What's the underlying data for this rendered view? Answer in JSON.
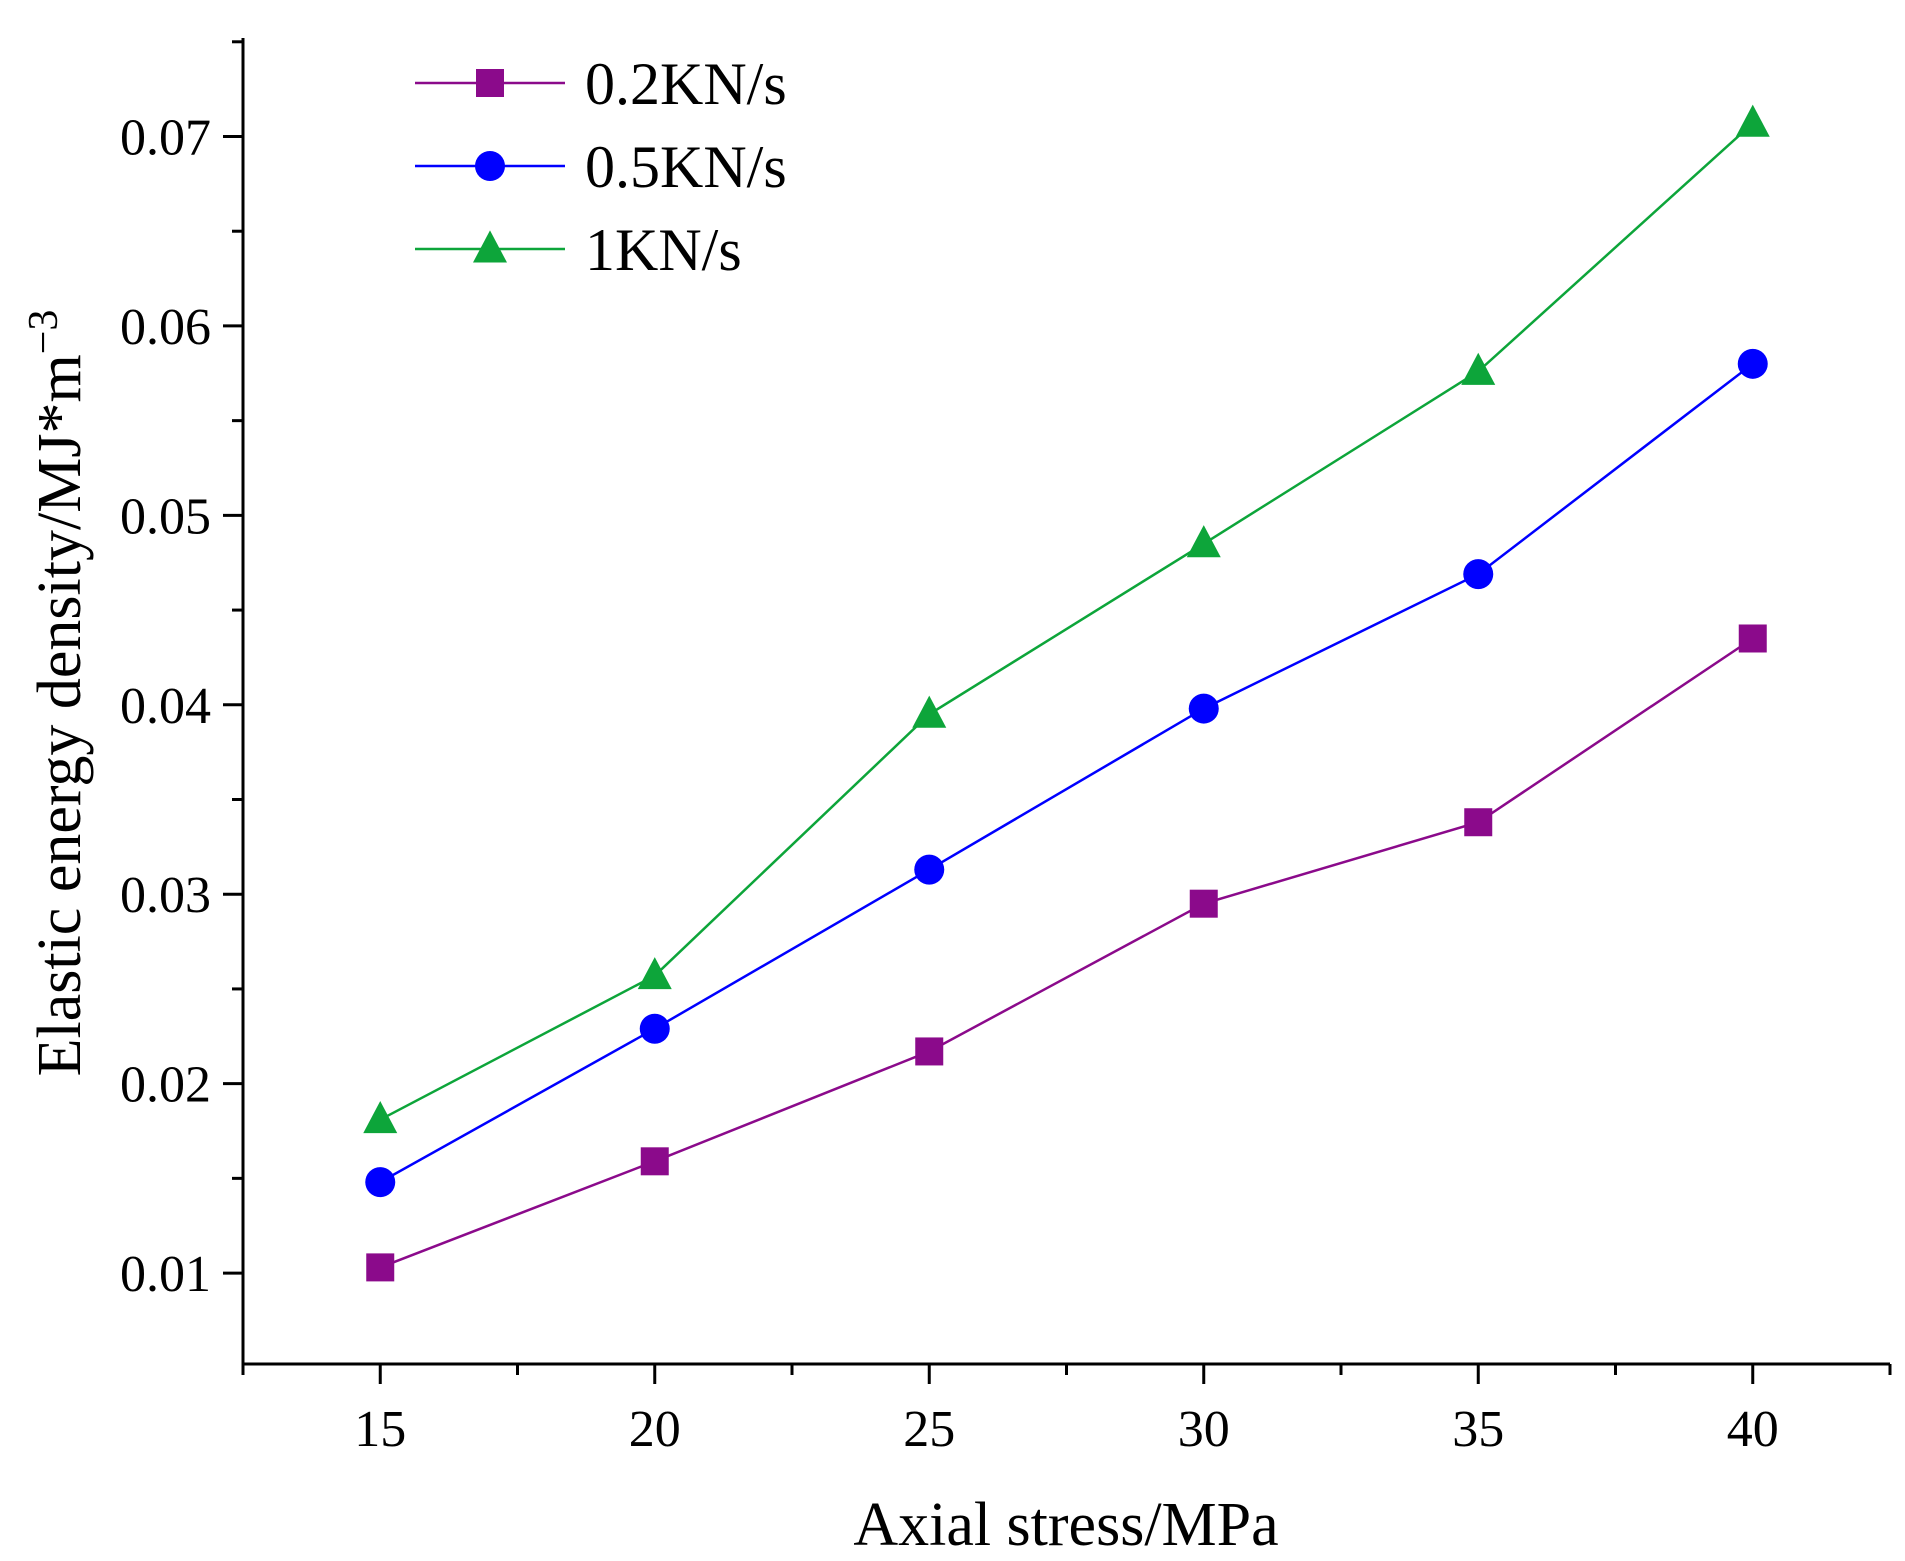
{
  "chart_data": {
    "type": "line",
    "title": "",
    "xlabel": "Axial stress/MPa",
    "ylabel_main": "Elastic energy density/MJ*m",
    "ylabel_sup": "−3",
    "x": [
      15,
      20,
      25,
      30,
      35,
      40
    ],
    "xlim": [
      12.5,
      42.5
    ],
    "ylim": [
      0.0052,
      0.0752
    ],
    "x_ticks": [
      15,
      20,
      25,
      30,
      35,
      40
    ],
    "x_tick_labels": [
      "15",
      "20",
      "25",
      "30",
      "35",
      "40"
    ],
    "y_ticks": [
      0.01,
      0.02,
      0.03,
      0.04,
      0.05,
      0.06,
      0.07
    ],
    "y_tick_labels": [
      "0.01",
      "0.02",
      "0.03",
      "0.04",
      "0.05",
      "0.06",
      "0.07"
    ],
    "grid": false,
    "legend_position": "top-left",
    "series": [
      {
        "name": "0.2KN/s",
        "marker": "square",
        "color": "#8B0A8B",
        "values": [
          0.0103,
          0.0159,
          0.0217,
          0.0295,
          0.0338,
          0.0435
        ]
      },
      {
        "name": "0.5KN/s",
        "marker": "circle",
        "color": "#0000FF",
        "values": [
          0.0148,
          0.0229,
          0.0313,
          0.0398,
          0.0469,
          0.058
        ]
      },
      {
        "name": "1KN/s",
        "marker": "triangle",
        "color": "#0DA53A",
        "values": [
          0.0181,
          0.0257,
          0.0395,
          0.0485,
          0.0576,
          0.0707
        ]
      }
    ]
  }
}
